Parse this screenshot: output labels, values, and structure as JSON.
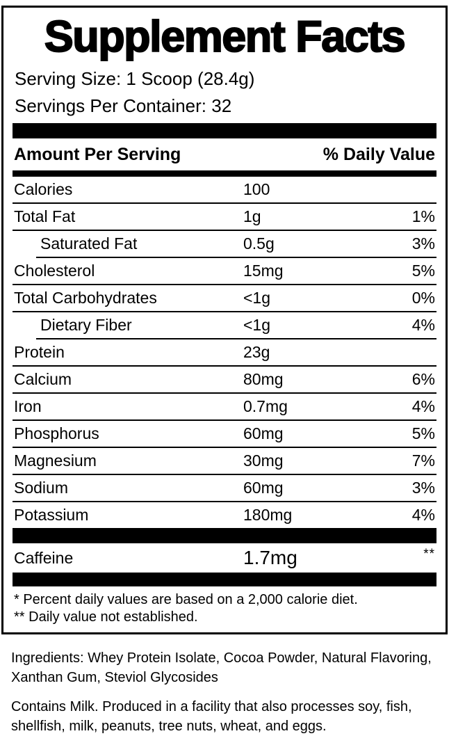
{
  "label": {
    "title": "Supplement Facts",
    "serving_size": "Serving Size: 1 Scoop (28.4g)",
    "servings_per_container": "Servings Per Container: 32",
    "header": {
      "amount_per_serving": "Amount Per Serving",
      "daily_value": "% Daily Value"
    },
    "rows": [
      {
        "name": "Calories",
        "amount": "100",
        "dv": ""
      },
      {
        "name": "Total Fat",
        "amount": "1g",
        "dv": "1%"
      },
      {
        "name": "Saturated Fat",
        "amount": "0.5g",
        "dv": "3%"
      },
      {
        "name": "Cholesterol",
        "amount": "15mg",
        "dv": "5%"
      },
      {
        "name": "Total Carbohydrates",
        "amount": "<1g",
        "dv": "0%"
      },
      {
        "name": "Dietary Fiber",
        "amount": "<1g",
        "dv": "4%"
      },
      {
        "name": "Protein",
        "amount": "23g",
        "dv": ""
      },
      {
        "name": "Calcium",
        "amount": "80mg",
        "dv": "6%"
      },
      {
        "name": "Iron",
        "amount": "0.7mg",
        "dv": "4%"
      },
      {
        "name": "Phosphorus",
        "amount": "60mg",
        "dv": "5%"
      },
      {
        "name": "Magnesium",
        "amount": "30mg",
        "dv": "7%"
      },
      {
        "name": "Sodium",
        "amount": "60mg",
        "dv": "3%"
      },
      {
        "name": "Potassium",
        "amount": "180mg",
        "dv": "4%"
      }
    ],
    "caffeine_row": {
      "name": "Caffeine",
      "amount": "1.7mg",
      "dv": "**"
    },
    "footnotes": [
      "* Percent daily values are based on a 2,000 calorie diet.",
      "** Daily value not established."
    ]
  },
  "ingredients": "Ingredients: Whey Protein Isolate, Cocoa Powder, Natural Flavoring, Xanthan Gum, Steviol Glycosides",
  "allergen": "Contains Milk. Produced in a facility that also processes soy, fish, shellfish, milk, peanuts, tree nuts, wheat, and eggs.",
  "colors": {
    "text": "#000000",
    "background": "#ffffff"
  }
}
